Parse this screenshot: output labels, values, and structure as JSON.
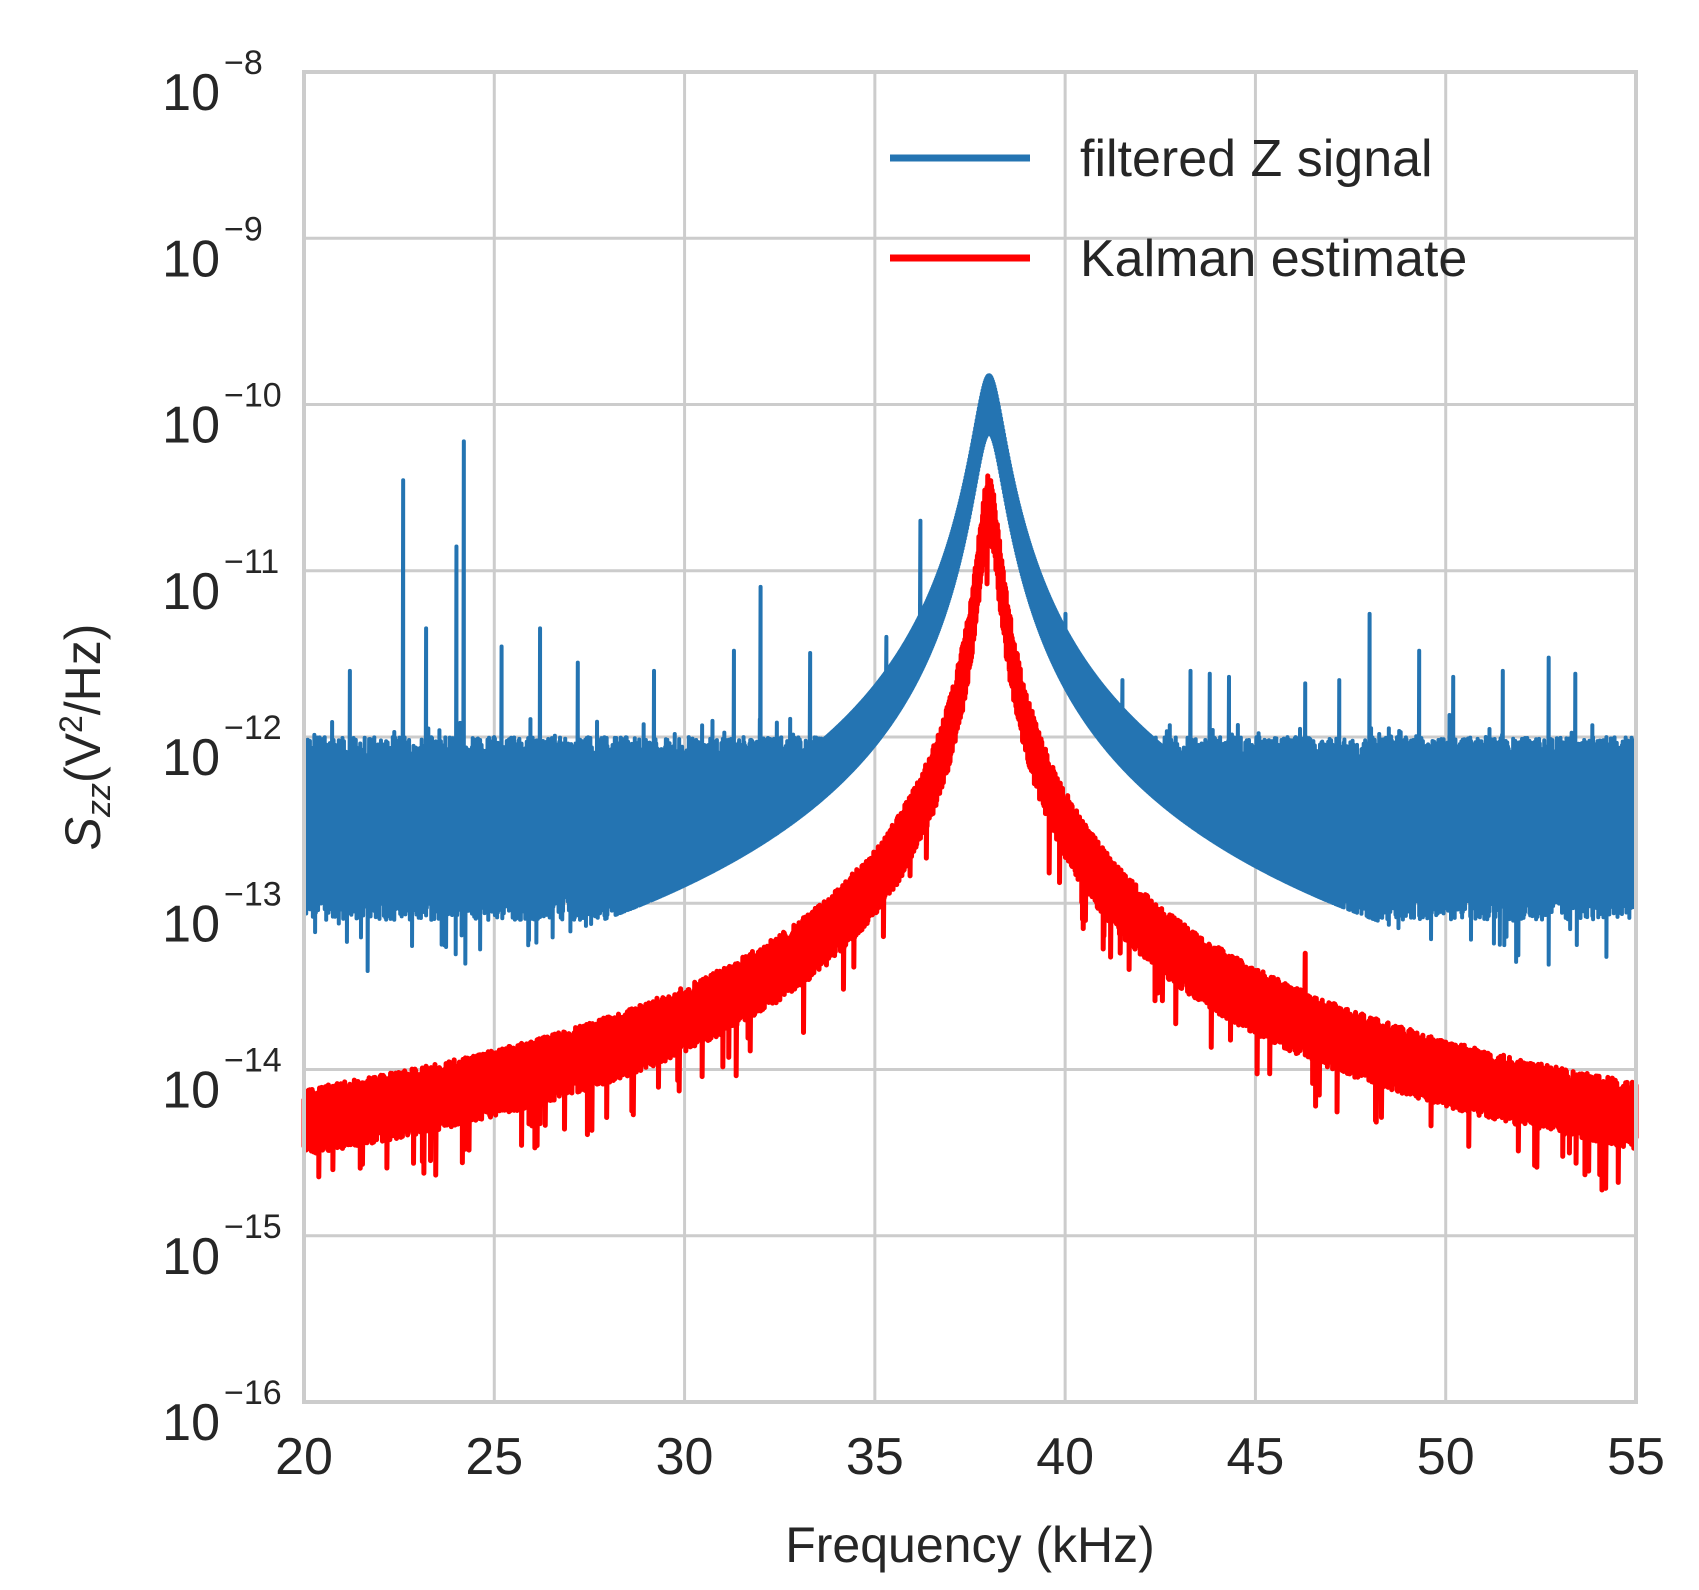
{
  "chart_data": {
    "type": "line",
    "title": "",
    "xlabel": "Frequency (kHz)",
    "ylabel": {
      "symbol": "S",
      "subscript": "zz",
      "units_prefix": "(V",
      "units_sup": "2",
      "units_suffix": "/Hz)"
    },
    "xscale": "linear",
    "yscale": "log",
    "xlim": [
      20,
      55
    ],
    "ylim": [
      1e-16,
      1e-08
    ],
    "xticks": [
      20,
      25,
      30,
      35,
      40,
      45,
      50,
      55
    ],
    "xtick_labels": [
      "20",
      "25",
      "30",
      "35",
      "40",
      "45",
      "50",
      "55"
    ],
    "yticks": [
      {
        "value": 1e-16,
        "base": "10",
        "exponent": "−16"
      },
      {
        "value": 1e-15,
        "base": "10",
        "exponent": "−15"
      },
      {
        "value": 1e-14,
        "base": "10",
        "exponent": "−14"
      },
      {
        "value": 1e-13,
        "base": "10",
        "exponent": "−13"
      },
      {
        "value": 1e-12,
        "base": "10",
        "exponent": "−12"
      },
      {
        "value": 1e-11,
        "base": "10",
        "exponent": "−11"
      },
      {
        "value": 1e-10,
        "base": "10",
        "exponent": "−10"
      },
      {
        "value": 1e-09,
        "base": "10",
        "exponent": "−9"
      },
      {
        "value": 1e-08,
        "base": "10",
        "exponent": "−8"
      }
    ],
    "grid": true,
    "legend_position": "top-right",
    "series": [
      {
        "name": "filtered Z signal",
        "color": "#2474b2",
        "kind": "noise_floor_with_peaks",
        "baseline_log10": -12.55,
        "noise_band_log10": [
          -13.1,
          -12.0
        ],
        "resonance": {
          "center": 38.0,
          "peak": 1.5e-10,
          "width_khz": 0.35
        },
        "peaks": [
          {
            "x": 21.2,
            "y": 2.5e-12
          },
          {
            "x": 22.6,
            "y": 3.5e-11
          },
          {
            "x": 23.2,
            "y": 4.5e-12
          },
          {
            "x": 24.0,
            "y": 1.4e-11
          },
          {
            "x": 24.2,
            "y": 6e-11
          },
          {
            "x": 25.2,
            "y": 3.5e-12
          },
          {
            "x": 26.2,
            "y": 4.5e-12
          },
          {
            "x": 27.2,
            "y": 2.8e-12
          },
          {
            "x": 29.2,
            "y": 2.5e-12
          },
          {
            "x": 31.3,
            "y": 3.3e-12
          },
          {
            "x": 32.0,
            "y": 8e-12
          },
          {
            "x": 33.3,
            "y": 3.2e-12
          },
          {
            "x": 35.3,
            "y": 4e-12
          },
          {
            "x": 36.2,
            "y": 2e-11
          },
          {
            "x": 37.2,
            "y": 2e-11
          },
          {
            "x": 39.5,
            "y": 3.8e-12
          },
          {
            "x": 40.0,
            "y": 5.5e-12
          },
          {
            "x": 41.5,
            "y": 2.2e-12
          },
          {
            "x": 43.3,
            "y": 2.5e-12
          },
          {
            "x": 43.8,
            "y": 2.4e-12
          },
          {
            "x": 44.3,
            "y": 2.3e-12
          },
          {
            "x": 46.3,
            "y": 2.1e-12
          },
          {
            "x": 47.2,
            "y": 2.2e-12
          },
          {
            "x": 48.0,
            "y": 5.5e-12
          },
          {
            "x": 49.3,
            "y": 3.3e-12
          },
          {
            "x": 50.2,
            "y": 2.3e-12
          },
          {
            "x": 51.5,
            "y": 2.5e-12
          },
          {
            "x": 52.7,
            "y": 3e-12
          },
          {
            "x": 53.4,
            "y": 2.4e-12
          }
        ]
      },
      {
        "name": "Kalman estimate",
        "color": "#ff0000",
        "kind": "lorentzian",
        "center": 38.0,
        "peak": 2.5e-11,
        "floor": 1.1e-15,
        "hwhm_khz": 0.22,
        "noise_band_log10": [
          -0.2,
          0.2
        ],
        "spurs": [
          {
            "x": 22.6,
            "y": 7e-15
          },
          {
            "x": 32.0,
            "y": 1.3e-14
          },
          {
            "x": 46.3,
            "y": 5e-14
          },
          {
            "x": 52.7,
            "y": 7e-15
          }
        ]
      }
    ]
  }
}
